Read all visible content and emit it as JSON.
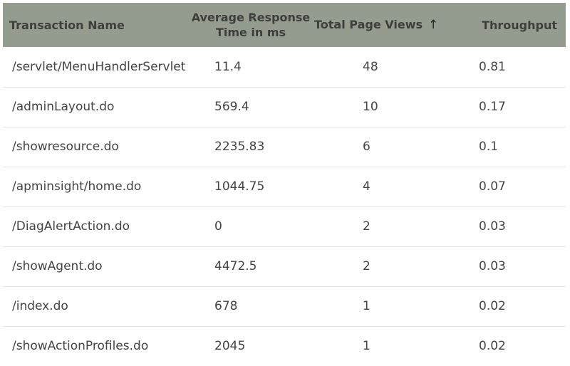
{
  "table": {
    "headers": {
      "transaction_name": "Transaction Name",
      "avg_response_line1": "Average Response",
      "avg_response_line2": "Time in ms",
      "total_page_views": "Total Page Views",
      "sort_indicator": "↑",
      "throughput": "Throughput"
    },
    "rows": [
      {
        "name": "/servlet/MenuHandlerServlet",
        "avg_response": "11.4",
        "page_views": "48",
        "throughput": "0.81"
      },
      {
        "name": "/adminLayout.do",
        "avg_response": "569.4",
        "page_views": "10",
        "throughput": "0.17"
      },
      {
        "name": "/showresource.do",
        "avg_response": "2235.83",
        "page_views": "6",
        "throughput": "0.1"
      },
      {
        "name": "/apminsight/home.do",
        "avg_response": "1044.75",
        "page_views": "4",
        "throughput": "0.07"
      },
      {
        "name": "/DiagAlertAction.do",
        "avg_response": "0",
        "page_views": "2",
        "throughput": "0.03"
      },
      {
        "name": "/showAgent.do",
        "avg_response": "4472.5",
        "page_views": "2",
        "throughput": "0.03"
      },
      {
        "name": "/index.do",
        "avg_response": "678",
        "page_views": "1",
        "throughput": "0.02"
      },
      {
        "name": "/showActionProfiles.do",
        "avg_response": "2045",
        "page_views": "1",
        "throughput": "0.02"
      }
    ],
    "sort_icon": "arrow-up-icon",
    "header_bg_color": "#939c8e"
  }
}
